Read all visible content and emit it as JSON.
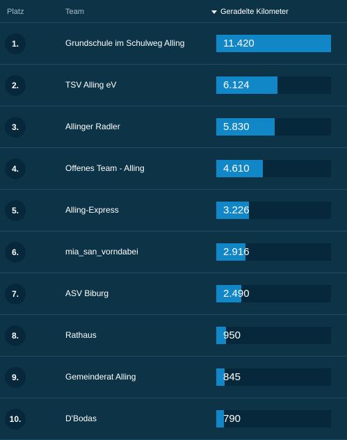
{
  "header": {
    "platz_label": "Platz",
    "team_label": "Team",
    "km_label": "Geradelte Kilometer",
    "sort_icon": "caret-down-icon"
  },
  "ranking": {
    "max_km": 11420,
    "rows": [
      {
        "rank": "1.",
        "team": "Grundschule im Schulweg Alling",
        "km_label": "11.420",
        "km": 11420
      },
      {
        "rank": "2.",
        "team": "TSV Alling eV",
        "km_label": "6.124",
        "km": 6124
      },
      {
        "rank": "3.",
        "team": "Allinger Radler",
        "km_label": "5.830",
        "km": 5830
      },
      {
        "rank": "4.",
        "team": "Offenes Team - Alling",
        "km_label": "4.610",
        "km": 4610
      },
      {
        "rank": "5.",
        "team": "Alling-Express",
        "km_label": "3.226",
        "km": 3226
      },
      {
        "rank": "6.",
        "team": "mia_san_vorndabei",
        "km_label": "2.916",
        "km": 2916
      },
      {
        "rank": "7.",
        "team": "ASV Biburg",
        "km_label": "2.490",
        "km": 2490
      },
      {
        "rank": "8.",
        "team": "Rathaus",
        "km_label": "950",
        "km": 950
      },
      {
        "rank": "9.",
        "team": "Gemeinderat Alling",
        "km_label": "845",
        "km": 845
      },
      {
        "rank": "10.",
        "team": "D'Bodas",
        "km_label": "790",
        "km": 790
      }
    ]
  },
  "colors": {
    "background": "#0d3347",
    "bar_fill": "#1287c8",
    "bar_track": "#07283a"
  }
}
